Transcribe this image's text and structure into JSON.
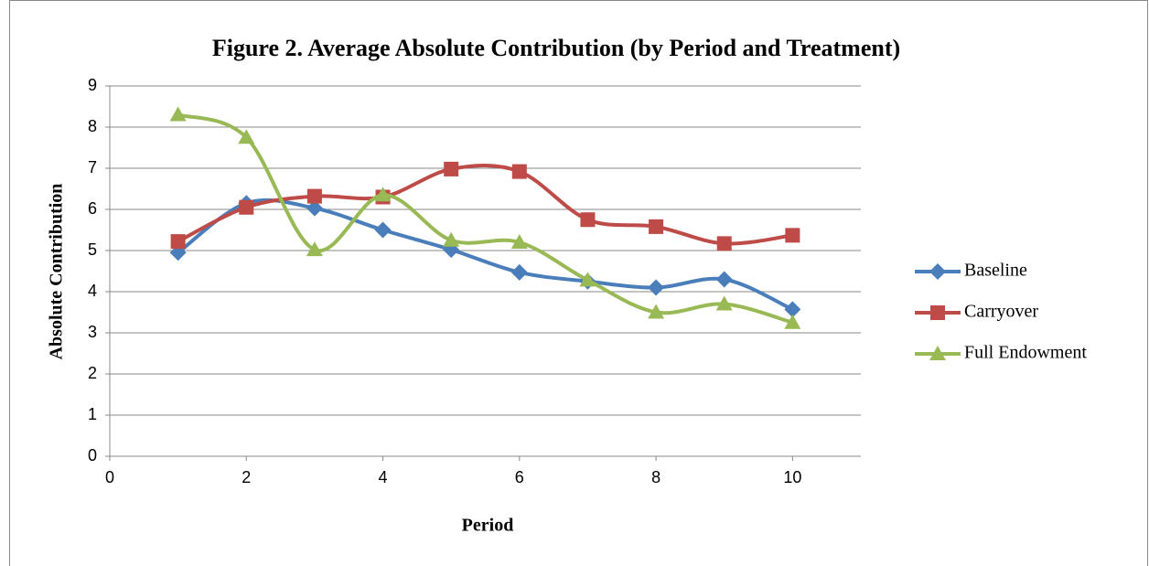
{
  "chart_data": {
    "type": "line",
    "title": "Figure 2. Average Absolute Contribution (by Period and Treatment)",
    "x_label": "Period",
    "y_label": "Absolute Contribution",
    "x": [
      1,
      2,
      3,
      4,
      5,
      6,
      7,
      8,
      9,
      10
    ],
    "series": [
      {
        "name": "Baseline",
        "color": "#4a7ebb",
        "marker": "diamond",
        "values": [
          4.95,
          6.15,
          6.03,
          5.5,
          5.02,
          4.47,
          4.25,
          4.1,
          4.3,
          3.57
        ]
      },
      {
        "name": "Carryover",
        "color": "#be4b48",
        "marker": "square",
        "values": [
          5.22,
          6.05,
          6.32,
          6.3,
          6.98,
          6.92,
          5.75,
          5.58,
          5.17,
          5.37
        ]
      },
      {
        "name": "Full Endowment",
        "color": "#98b954",
        "marker": "triangle",
        "values": [
          8.3,
          7.75,
          5.02,
          6.35,
          5.25,
          5.2,
          4.28,
          3.5,
          3.7,
          3.25
        ]
      }
    ],
    "xlim": [
      0,
      11
    ],
    "xticks": [
      0,
      2,
      4,
      6,
      8,
      10
    ],
    "ylim": [
      0,
      9
    ],
    "yticks": [
      0,
      1,
      2,
      3,
      4,
      5,
      6,
      7,
      8,
      9
    ],
    "grid": true,
    "smooth": true,
    "legend": "right"
  }
}
